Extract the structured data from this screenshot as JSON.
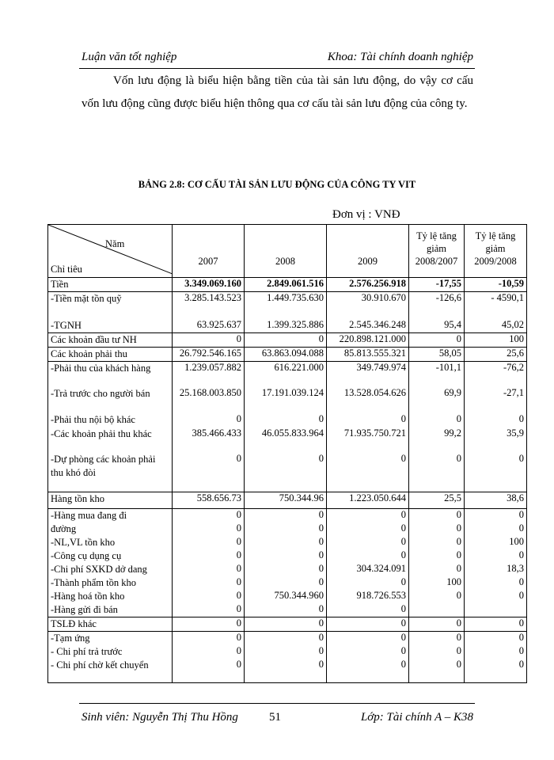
{
  "header": {
    "left": "Luận văn tốt nghiệp",
    "right": "Khoa: Tài chính doanh nghiệp"
  },
  "paragraph": "Vốn lưu động là biểu hiện bằng tiền của tài sản lưu động, do vậy cơ cấu vốn lưu động cũng được biểu hiện thông qua cơ cấu tài sản lưu động của công ty.",
  "table": {
    "title": "BẢNG 2.8: CƠ CẤU TÀI SẢN LƯU ĐỘNG CỦA CÔNG TY VIT",
    "unit": "Đơn vị : VNĐ",
    "corner_top": "Năm",
    "corner_bottom": "Chỉ tiêu",
    "columns": [
      "2007",
      "2008",
      "2009",
      "Tỷ lệ tăng giảm 2008/2007",
      "Tỷ lệ tăng giảm 2009/2008"
    ],
    "rows": [
      [
        "Tiền",
        "3.349.069.160",
        "2.849.061.516",
        "2.576.256.918",
        "-17,55",
        "-10,59"
      ],
      [
        "-Tiền mặt tồn quỹ",
        "3.285.143.523",
        "1.449.735.630",
        "30.910.670",
        "-126,6",
        "- 4590,1"
      ],
      [
        "-TGNH",
        "63.925.637",
        "1.399.325.886",
        "2.545.346.248",
        "95,4",
        "45,02"
      ],
      [
        "Các khoản đầu tư NH",
        "0",
        "0",
        "220.898.121.000",
        "0",
        "100"
      ],
      [
        "Các khoản phải thu",
        "26.792.546.165",
        "63.863.094.088",
        "85.813.555.321",
        "58,05",
        "25,6"
      ],
      [
        "-Phải thu của khách hàng",
        "1.239.057.882",
        "616.221.000",
        "349.749.974",
        "-101,1",
        "-76,2"
      ],
      [
        "-Trả trước cho người bán",
        "25.168.003.850",
        "17.191.039.124",
        "13.528.054.626",
        "69,9",
        "-27,1"
      ],
      [
        "-Phải thu nội bộ khác",
        "0",
        "0",
        "0",
        "0",
        "0"
      ],
      [
        "-Các khoản phải thu khác",
        "385.466.433",
        "46.055.833.964",
        "71.935.750.721",
        "99,2",
        "35,9"
      ],
      [
        "-Dự phòng các khoản phải thu khó đòi",
        "0",
        "0",
        "0",
        "0",
        "0"
      ],
      [
        "Hàng tồn kho",
        "558.656.73",
        "750.344.96",
        "1.223.050.644",
        "25,5",
        "38,6"
      ],
      [
        "-Hàng mua đang đi",
        "0",
        "0",
        "0",
        "0",
        "0"
      ],
      [
        "đường",
        "0",
        "0",
        "0",
        "0",
        "0"
      ],
      [
        "-NL,VL tồn kho",
        "0",
        "0",
        "0",
        "0",
        "100"
      ],
      [
        "-Công cụ dụng cụ",
        "0",
        "0",
        "0",
        "0",
        "0"
      ],
      [
        "-Chi phí SXKD dở dang",
        "0",
        "0",
        "304.324.091",
        "0",
        "18,3"
      ],
      [
        "-Thành phẩm tồn kho",
        "0",
        "0",
        "0",
        "100",
        "0"
      ],
      [
        "-Hàng hoá tồn kho",
        "0",
        "750.344.960",
        "918.726.553",
        "0",
        "0"
      ],
      [
        "-Hàng gửi đi bán",
        "0",
        "0",
        "0",
        null,
        null
      ],
      [
        "TSLĐ khác",
        "0",
        "0",
        "0",
        "0",
        "0"
      ],
      [
        "-Tạm ứng",
        "0",
        "0",
        "0",
        "0",
        "0"
      ],
      [
        "- Chi phí trả trước",
        "0",
        "0",
        "0",
        "0",
        "0"
      ],
      [
        "- Chi phí chờ kết chuyển",
        "0",
        "0",
        "0",
        "0",
        "0"
      ]
    ]
  },
  "footer": {
    "student": "Sinh viên: Nguyễn Thị  Thu Hồng",
    "page": "51",
    "class": "Lớp: Tài chính A – K38"
  }
}
